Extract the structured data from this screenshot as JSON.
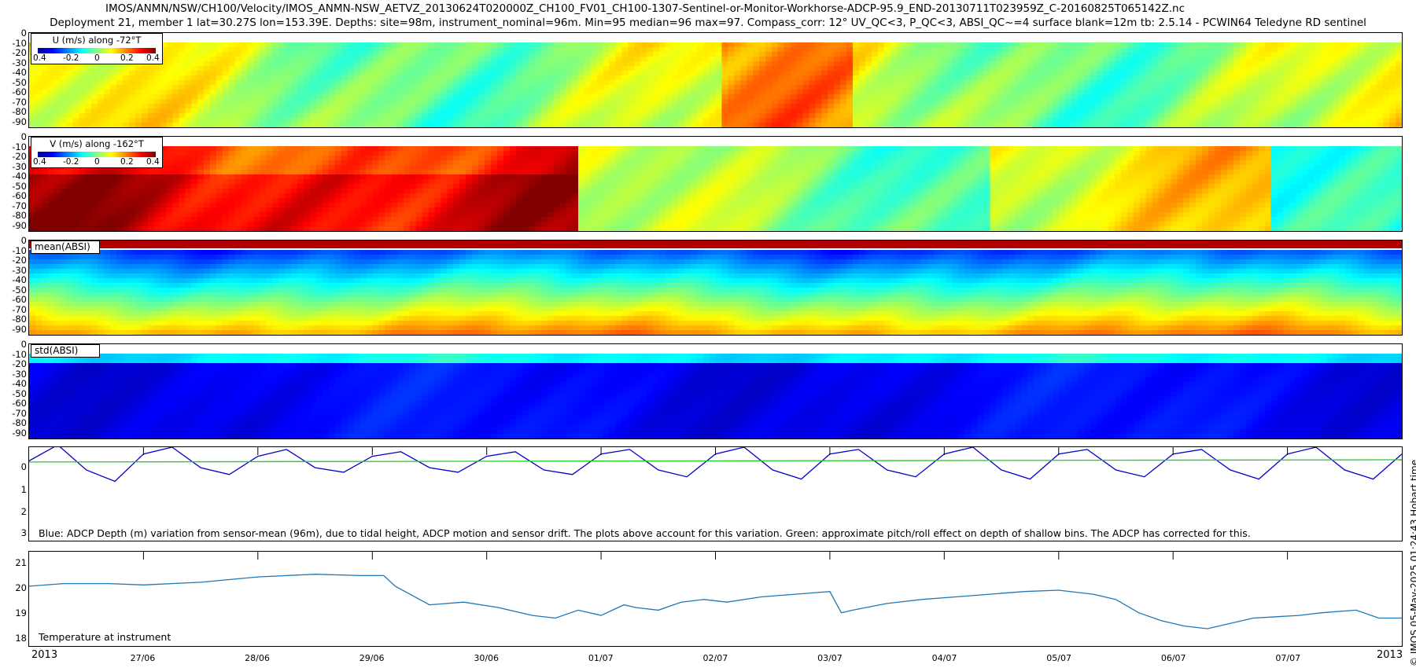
{
  "title": {
    "line1": "IMOS/ANMN/NSW/CH100/Velocity/IMOS_ANMN-NSW_AETVZ_20130624T020000Z_CH100_FV01_CH100-1307-Sentinel-or-Monitor-Workhorse-ADCP-95.9_END-20130711T023959Z_C-20160825T065142Z.nc",
    "line2": "Deployment 21, member 1 lat=30.27S lon=153.39E. Depths: site=98m, instrument_nominal=96m. Min=95 median=96 max=97. Compass_corr: 12° UV_QC<3, P_QC<3, ABSI_QC~=4 surface blank=12m tb: 2.5.14 - PCWIN64 Teledyne RD sentinel"
  },
  "side_text": "© IMOS 05-May-2025 01:24:43 Hobart time",
  "depth_ticks": [
    "0",
    "-10",
    "-20",
    "-30",
    "-40",
    "-50",
    "-60",
    "-70",
    "-80",
    "-90"
  ],
  "panels": {
    "u": {
      "colorbar_title": "U (m/s) along -72°T",
      "ticks": [
        "0.4",
        "-0.2",
        "0",
        "0.2",
        "0.4"
      ]
    },
    "v": {
      "colorbar_title": "V (m/s) along -162°T",
      "ticks": [
        "0.4",
        "-0.2",
        "0",
        "0.2",
        "0.4"
      ]
    },
    "mean_absi": {
      "label": "mean(ABSI)"
    },
    "std_absi": {
      "label": "std(ABSI)"
    },
    "depth": {
      "yticks": [
        "0",
        "1",
        "2",
        "3"
      ],
      "caption": "Blue: ADCP Depth (m) variation from sensor-mean (96m), due to tidal height, ADCP motion and sensor drift. The plots above account for this variation. Green: approximate pitch/roll effect on depth of shallow bins. The ADCP has corrected for this."
    },
    "temp": {
      "yticks": [
        "21",
        "20",
        "19",
        "18"
      ],
      "caption": "Temperature at instrument"
    }
  },
  "x_axis": {
    "start_label": "2013",
    "end_label": "2013",
    "ticks": [
      "27/06",
      "28/06",
      "29/06",
      "30/06",
      "01/07",
      "02/07",
      "03/07",
      "04/07",
      "05/07",
      "06/07",
      "07/07"
    ]
  },
  "colors": {
    "depth_line": "#0000cc",
    "pitch_line": "#22cc22",
    "temp_line": "#1f77b4"
  },
  "chart_data": [
    {
      "type": "line",
      "title": "",
      "xlabel": "",
      "ylabel": "",
      "x_range": [
        "26/06/2013",
        "08/07/2013"
      ],
      "ylim": [
        3.5,
        -0.6
      ],
      "series": [
        {
          "color": "#0000cc",
          "description": "ADCP depth variation (semi-diurnal tide)",
          "x": [
            0.0,
            0.25,
            0.5,
            0.75,
            1.0,
            1.25,
            1.5,
            1.75,
            2.0,
            2.25,
            2.5,
            2.75,
            3.0,
            3.25,
            3.5,
            3.75,
            4.0,
            4.25,
            4.5,
            4.75,
            5.0,
            5.25,
            5.5,
            5.75,
            6.0,
            6.25,
            6.5,
            6.75,
            7.0,
            7.25,
            7.5,
            7.75,
            8.0,
            8.25,
            8.5,
            8.75,
            9.0,
            9.25,
            9.5,
            9.75,
            10.0,
            10.25,
            10.5,
            10.75,
            11.0,
            11.25,
            11.5,
            11.75,
            12.0
          ],
          "y": [
            0,
            -0.7,
            0.4,
            0.9,
            -0.3,
            -0.6,
            0.3,
            0.6,
            -0.2,
            -0.5,
            0.3,
            0.5,
            -0.2,
            -0.4,
            0.3,
            0.5,
            -0.2,
            -0.4,
            0.4,
            0.6,
            -0.3,
            -0.5,
            0.4,
            0.7,
            -0.3,
            -0.6,
            0.4,
            0.8,
            -0.3,
            -0.5,
            0.4,
            0.7,
            -0.3,
            -0.6,
            0.4,
            0.8,
            -0.3,
            -0.5,
            0.4,
            0.7,
            -0.3,
            -0.5,
            0.4,
            0.8,
            -0.3,
            -0.6,
            0.4,
            0.8,
            -0.3
          ]
        },
        {
          "color": "#22cc22",
          "description": "approximate pitch/roll effect",
          "x": [
            0,
            12
          ],
          "y": [
            0.05,
            -0.05
          ]
        }
      ]
    },
    {
      "type": "line",
      "title": "",
      "ylabel": "",
      "ylim": [
        17.75,
        21.3
      ],
      "series": [
        {
          "color": "#1f77b4",
          "description": "Temperature at instrument",
          "x": [
            0.0,
            0.3,
            0.7,
            1.0,
            1.5,
            2.0,
            2.5,
            2.9,
            3.1,
            3.2,
            3.5,
            3.8,
            4.1,
            4.4,
            4.6,
            4.8,
            5.0,
            5.2,
            5.3,
            5.5,
            5.7,
            5.9,
            6.1,
            6.4,
            6.7,
            7.0,
            7.1,
            7.2,
            7.5,
            7.8,
            8.1,
            8.4,
            8.7,
            9.0,
            9.3,
            9.5,
            9.7,
            9.9,
            10.1,
            10.3,
            10.5,
            10.7,
            10.9,
            11.1,
            11.3,
            11.6,
            11.8,
            12.0
          ],
          "y": [
            20.0,
            20.1,
            20.1,
            20.05,
            20.15,
            20.35,
            20.45,
            20.4,
            20.4,
            20.0,
            19.3,
            19.4,
            19.2,
            18.9,
            18.8,
            19.1,
            18.9,
            19.3,
            19.2,
            19.1,
            19.4,
            19.5,
            19.4,
            19.6,
            19.7,
            19.8,
            19.0,
            19.1,
            19.35,
            19.5,
            19.6,
            19.7,
            19.8,
            19.85,
            19.7,
            19.5,
            19.0,
            18.7,
            18.5,
            18.4,
            18.6,
            18.8,
            18.85,
            18.9,
            19.0,
            19.1,
            18.8,
            18.8
          ]
        }
      ]
    }
  ]
}
